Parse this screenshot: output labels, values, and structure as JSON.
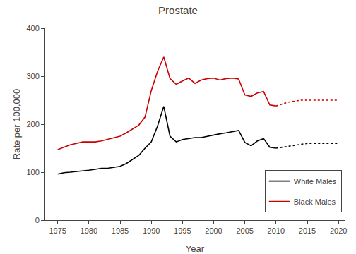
{
  "chart_data": {
    "type": "line",
    "title": "Prostate",
    "xlabel": "Year",
    "ylabel": "Rate per 100,000",
    "x": [
      1975,
      1976,
      1977,
      1978,
      1979,
      1980,
      1981,
      1982,
      1983,
      1984,
      1985,
      1986,
      1987,
      1988,
      1989,
      1990,
      1991,
      1992,
      1993,
      1994,
      1995,
      1996,
      1997,
      1998,
      1999,
      2000,
      2001,
      2002,
      2003,
      2004,
      2005,
      2006,
      2007,
      2008,
      2009,
      2010,
      2011,
      2012,
      2013,
      2014,
      2015,
      2016,
      2017,
      2018,
      2019,
      2020
    ],
    "series": [
      {
        "name": "White Males",
        "color": "#000000",
        "line_style": "solid",
        "values": [
          96,
          99,
          100,
          101,
          103,
          104,
          106,
          108,
          108,
          110,
          112,
          118,
          126,
          135,
          150,
          163,
          196,
          237,
          175,
          163,
          168,
          170,
          172,
          172,
          175,
          178,
          180,
          182,
          185,
          187,
          162,
          155,
          165,
          170,
          152,
          150,
          null,
          null,
          null,
          null,
          null,
          null,
          null,
          null,
          null,
          null
        ]
      },
      {
        "name": "White Males",
        "color": "#000000",
        "line_style": "dotted",
        "values": [
          null,
          null,
          null,
          null,
          null,
          null,
          null,
          null,
          null,
          null,
          null,
          null,
          null,
          null,
          null,
          null,
          null,
          null,
          null,
          null,
          null,
          null,
          null,
          null,
          null,
          null,
          null,
          null,
          null,
          null,
          null,
          null,
          null,
          null,
          null,
          150,
          152,
          155,
          157,
          158,
          160,
          160,
          160,
          160,
          160,
          160
        ]
      },
      {
        "name": "Black Males",
        "color": "#cc0000",
        "line_style": "solid",
        "values": [
          147,
          152,
          157,
          160,
          163,
          163,
          163,
          165,
          168,
          172,
          175,
          182,
          190,
          198,
          215,
          270,
          310,
          340,
          295,
          283,
          290,
          296,
          285,
          292,
          295,
          296,
          292,
          295,
          296,
          294,
          261,
          258,
          265,
          268,
          240,
          238,
          null,
          null,
          null,
          null,
          null,
          null,
          null,
          null,
          null,
          null
        ]
      },
      {
        "name": "Black Males",
        "color": "#cc0000",
        "line_style": "dotted",
        "values": [
          null,
          null,
          null,
          null,
          null,
          null,
          null,
          null,
          null,
          null,
          null,
          null,
          null,
          null,
          null,
          null,
          null,
          null,
          null,
          null,
          null,
          null,
          null,
          null,
          null,
          null,
          null,
          null,
          null,
          null,
          null,
          null,
          null,
          null,
          null,
          238,
          242,
          246,
          248,
          250,
          250,
          250,
          250,
          250,
          250,
          250
        ]
      }
    ],
    "xlim": [
      1973,
      2021
    ],
    "ylim": [
      0,
      400
    ],
    "xticks": [
      1975,
      1980,
      1985,
      1990,
      1995,
      2000,
      2005,
      2010,
      2015,
      2020
    ],
    "yticks": [
      0,
      100,
      200,
      300,
      400
    ],
    "grid": false,
    "legend": "lower right"
  }
}
